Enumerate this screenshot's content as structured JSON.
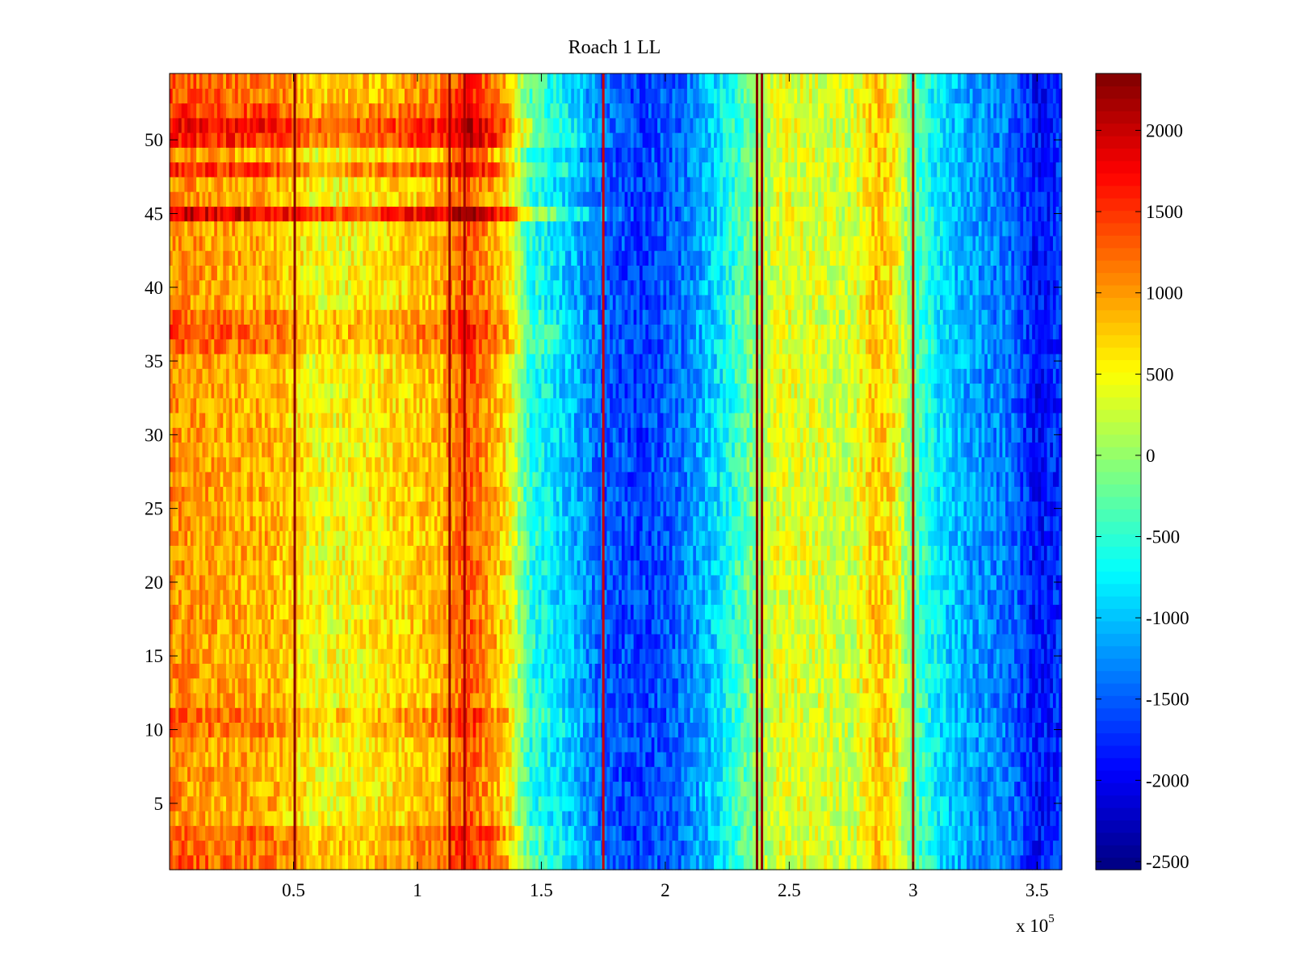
{
  "chart_data": {
    "type": "heatmap",
    "title": "Roach 1 LL",
    "xlabel": "",
    "ylabel": "",
    "xlim": [
      0,
      360000
    ],
    "ylim": [
      0.5,
      54.5
    ],
    "x_ticks": [
      50000,
      100000,
      150000,
      200000,
      250000,
      300000,
      350000
    ],
    "x_tick_labels": [
      "0.5",
      "1",
      "1.5",
      "2",
      "2.5",
      "3",
      "3.5"
    ],
    "x_exponent_label": {
      "base": "x 10",
      "power": "5"
    },
    "y_ticks": [
      5,
      10,
      15,
      20,
      25,
      30,
      35,
      40,
      45,
      50
    ],
    "y_tick_labels": [
      "5",
      "10",
      "15",
      "20",
      "25",
      "30",
      "35",
      "40",
      "45",
      "50"
    ],
    "rows": 54,
    "colorbar": {
      "colormap": "jet",
      "clim": [
        -2550,
        2350
      ],
      "ticks": [
        2000,
        1500,
        1000,
        500,
        0,
        -500,
        -1000,
        -1500,
        -2000,
        -2500
      ],
      "tick_labels": [
        "2000",
        "1500",
        "1000",
        "500",
        "0",
        "-500",
        "-1000",
        "-1500",
        "-2000",
        "-2500"
      ]
    },
    "column_profile": {
      "x": [
        0,
        20000,
        40000,
        60000,
        80000,
        100000,
        110000,
        120000,
        130000,
        137000,
        145000,
        160000,
        175000,
        190000,
        205000,
        220000,
        235000,
        245000,
        260000,
        275000,
        285000,
        292000,
        300000,
        310000,
        320000,
        330000,
        340000,
        350000,
        360000
      ],
      "values": [
        1050,
        950,
        900,
        450,
        550,
        750,
        900,
        1350,
        950,
        550,
        -500,
        -950,
        -1500,
        -1650,
        -1450,
        -900,
        -150,
        400,
        350,
        250,
        800,
        600,
        -250,
        -800,
        -1100,
        -1250,
        -1400,
        -1900,
        -1700
      ]
    },
    "row_offsets": [
      {
        "y": 1,
        "value": 300
      },
      {
        "y": 2,
        "value": 250
      },
      {
        "y": 3,
        "value": 350
      },
      {
        "y": 10,
        "value": 200
      },
      {
        "y": 11,
        "value": 250
      },
      {
        "y": 36,
        "value": 250
      },
      {
        "y": 37,
        "value": 350
      },
      {
        "y": 38,
        "value": 250
      },
      {
        "y": 45,
        "value": 950
      },
      {
        "y": 48,
        "value": 550
      },
      {
        "y": 50,
        "value": 650
      },
      {
        "y": 51,
        "value": 750
      },
      {
        "y": 52,
        "value": 450
      },
      {
        "y": 53,
        "value": 300
      },
      {
        "y": 54,
        "value": 250
      }
    ],
    "vertical_streaks": [
      {
        "x": 50500,
        "value": 2300
      },
      {
        "x": 113000,
        "value": 2200
      },
      {
        "x": 119000,
        "value": 2150
      },
      {
        "x": 175000,
        "value": 2000
      },
      {
        "x": 237000,
        "value": 2350
      },
      {
        "x": 239000,
        "value": 2250
      },
      {
        "x": 300000,
        "value": 2100
      }
    ]
  }
}
